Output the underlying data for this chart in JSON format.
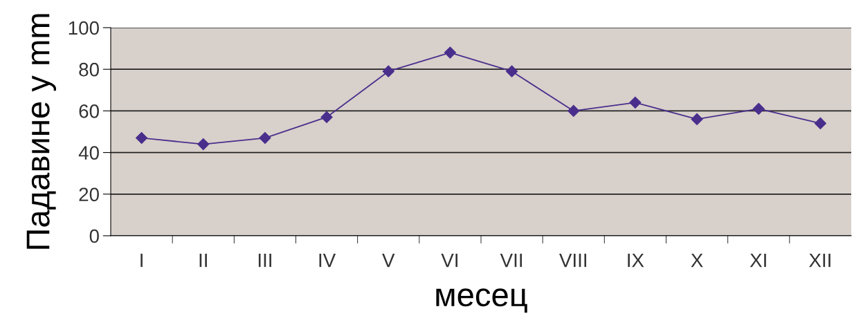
{
  "chart_data": {
    "type": "line",
    "xlabel": "месец",
    "ylabel": "Падавине у mm",
    "categories": [
      "I",
      "II",
      "III",
      "IV",
      "V",
      "VI",
      "VII",
      "VIII",
      "IX",
      "X",
      "XI",
      "XII"
    ],
    "series": [
      {
        "color": "#4a2e8c",
        "values": [
          47,
          44,
          47,
          57,
          79,
          88,
          79,
          60,
          64,
          56,
          61,
          54
        ]
      }
    ],
    "ylim": [
      0,
      100
    ],
    "yticks": [
      0,
      20,
      40,
      60,
      80,
      100
    ],
    "grid": "y",
    "marker": "diamond",
    "line_style": "solid",
    "legend": false
  }
}
